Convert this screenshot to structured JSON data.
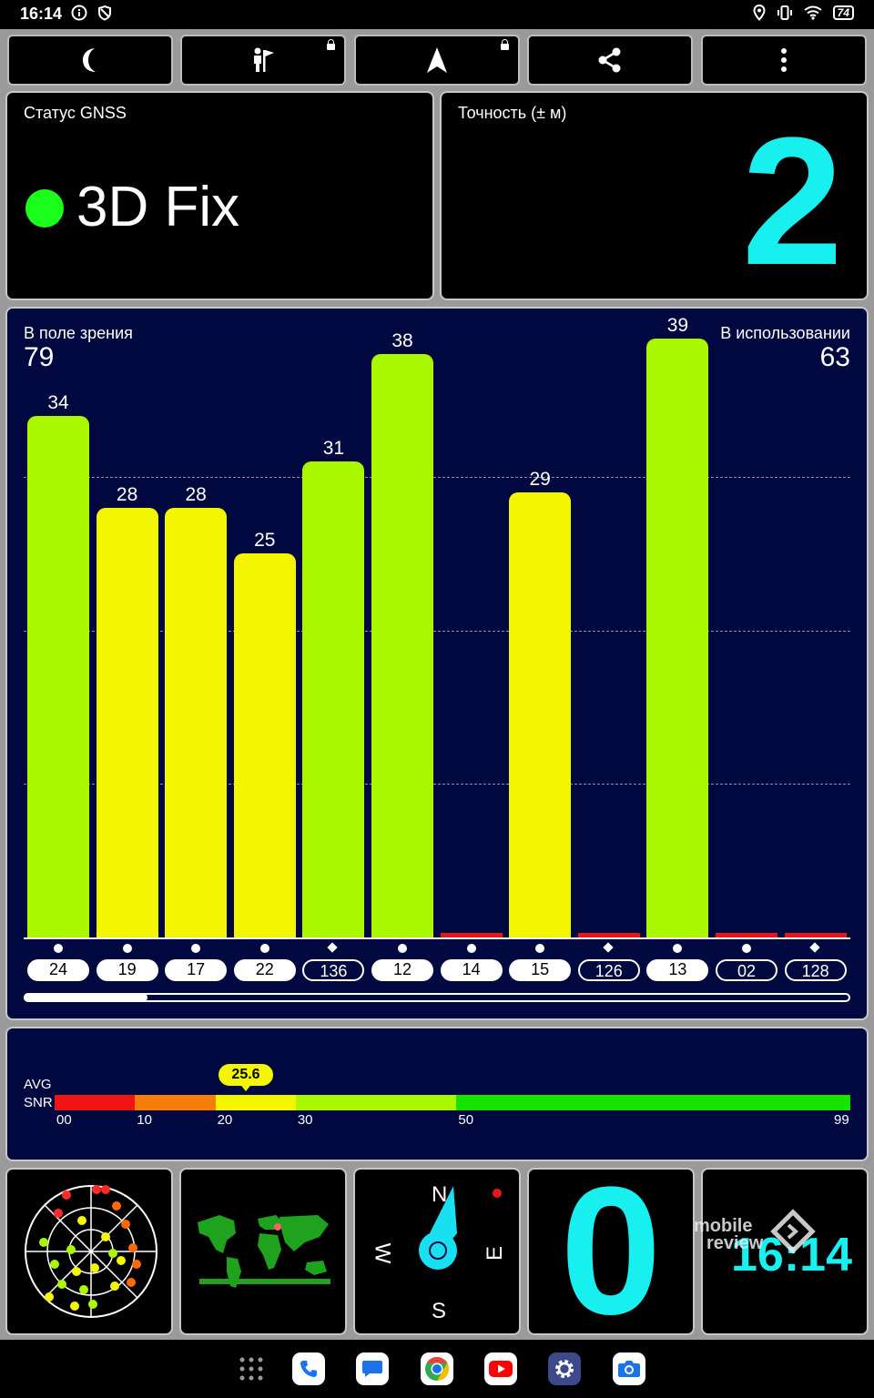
{
  "status_bar": {
    "time": "16:14",
    "battery": "74"
  },
  "toolbar": {
    "buttons": [
      {
        "name": "night-mode-button",
        "icon": "moon-icon",
        "locked": false
      },
      {
        "name": "map-marker-button",
        "icon": "person-flag-icon",
        "locked": true
      },
      {
        "name": "navigate-button",
        "icon": "navigation-arrow-icon",
        "locked": true
      },
      {
        "name": "share-button",
        "icon": "share-icon",
        "locked": false
      },
      {
        "name": "more-button",
        "icon": "more-vertical-icon",
        "locked": false
      }
    ]
  },
  "gnss_status": {
    "label": "Статус GNSS",
    "value": "3D Fix",
    "indicator_color": "#19ff19"
  },
  "accuracy": {
    "label": "Точность (± м)",
    "value": "2"
  },
  "satellites": {
    "in_view_label": "В поле зрения",
    "in_view": "79",
    "in_use_label": "В использовании",
    "in_use": "63",
    "scroll_position": 0.15
  },
  "chart_data": {
    "type": "bar",
    "categories": [
      "24",
      "19",
      "17",
      "22",
      "136",
      "12",
      "14",
      "15",
      "126",
      "13",
      "02",
      "128"
    ],
    "values": [
      34,
      28,
      28,
      25,
      31,
      38,
      0,
      29,
      0,
      39,
      0,
      0
    ],
    "labels": [
      "34",
      "28",
      "28",
      "25",
      "31",
      "38",
      "",
      "29",
      "",
      "39",
      "",
      ""
    ],
    "used": [
      true,
      true,
      true,
      true,
      false,
      true,
      true,
      true,
      false,
      true,
      false,
      false
    ],
    "markers": [
      "circle",
      "circle",
      "circle",
      "circle",
      "diamond",
      "circle",
      "circle",
      "circle",
      "diamond",
      "circle",
      "circle",
      "diamond"
    ],
    "ylim": [
      0,
      60
    ],
    "grid": [
      20,
      40,
      60
    ],
    "colors": {
      "strong": "#aaf800",
      "medium": "#f4f600",
      "none": "#e8141e"
    }
  },
  "snr": {
    "avg_label": "AVG",
    "snr_label": "SNR",
    "avg_value": "25.6",
    "avg": 25.6,
    "ticks": [
      "00",
      "10",
      "20",
      "30",
      "50",
      "99"
    ],
    "segment_colors": [
      "#f01414",
      "#f77d0a",
      "#f4f600",
      "#aaf800",
      "#15e400"
    ]
  },
  "compass": {
    "north": "N",
    "south": "S",
    "east": "E",
    "west": "W"
  },
  "speed": {
    "value": "0"
  },
  "clock": {
    "time": "16:14"
  },
  "watermark": {
    "line1": "mobile",
    "line2": "review"
  },
  "dock": {
    "apps": [
      "apps-grid-icon",
      "phone-icon",
      "messages-icon",
      "chrome-icon",
      "youtube-icon",
      "settings-icon",
      "camera-icon"
    ]
  }
}
